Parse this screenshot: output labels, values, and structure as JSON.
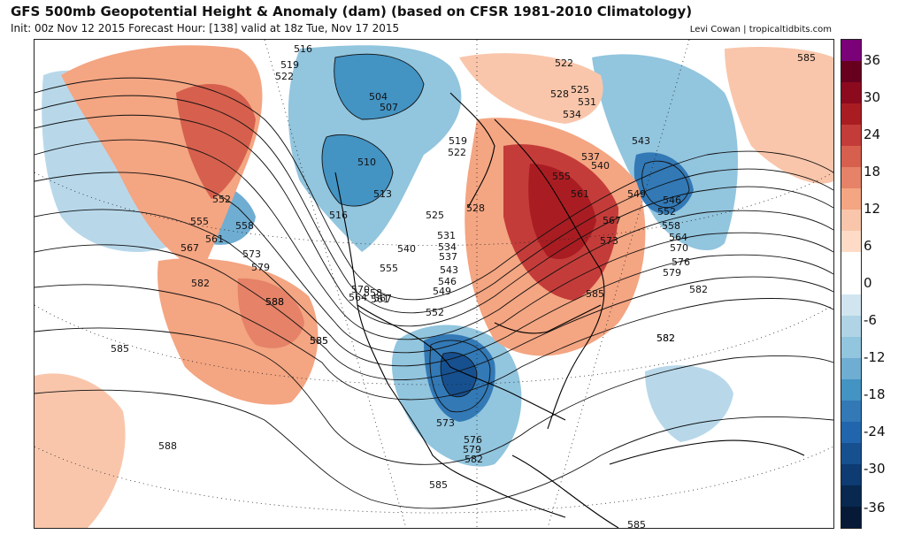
{
  "header": {
    "title": "GFS 500mb Geopotential Height & Anomaly (dam) (based on CFSR 1981-2010 Climatology)",
    "subtitle": "Init: 00z Nov 12 2015   Forecast Hour: [138]   valid at 18z Tue, Nov 17 2015",
    "credit": "Levi Cowan | tropicaltidbits.com"
  },
  "colorbar": {
    "ticks": [
      "36",
      "30",
      "24",
      "18",
      "12",
      "6",
      "0",
      "-6",
      "-12",
      "-18",
      "-24",
      "-30",
      "-36"
    ],
    "colors": [
      "#7a0177",
      "#67001f",
      "#8c0a1e",
      "#a91d22",
      "#c43c39",
      "#d6604d",
      "#e58267",
      "#f4a582",
      "#f9c6ab",
      "#fddbc7",
      "#ffffff",
      "#ffffff",
      "#d1e5f0",
      "#b0d4e6",
      "#92c5de",
      "#6fadd2",
      "#4393c3",
      "#3279b6",
      "#2166ac",
      "#17508f",
      "#0d3b72",
      "#08284f",
      "#061a38"
    ]
  },
  "contour_labels": [
    "516",
    "519",
    "522",
    "504",
    "507",
    "510",
    "513",
    "516",
    "519",
    "522",
    "525",
    "528",
    "531",
    "534",
    "537",
    "540",
    "543",
    "546",
    "549",
    "552",
    "555",
    "558",
    "561",
    "564",
    "567",
    "570",
    "573",
    "576",
    "579",
    "582",
    "585",
    "588",
    "585",
    "585",
    "588",
    "582",
    "585",
    "522",
    "525",
    "528",
    "531",
    "534",
    "537",
    "540",
    "543",
    "546",
    "549",
    "552",
    "555",
    "558",
    "561",
    "564",
    "567",
    "570",
    "573",
    "576",
    "579",
    "582",
    "585",
    "552",
    "555",
    "558",
    "561",
    "567",
    "573",
    "579",
    "582",
    "588",
    "585",
    "582",
    "585"
  ]
}
